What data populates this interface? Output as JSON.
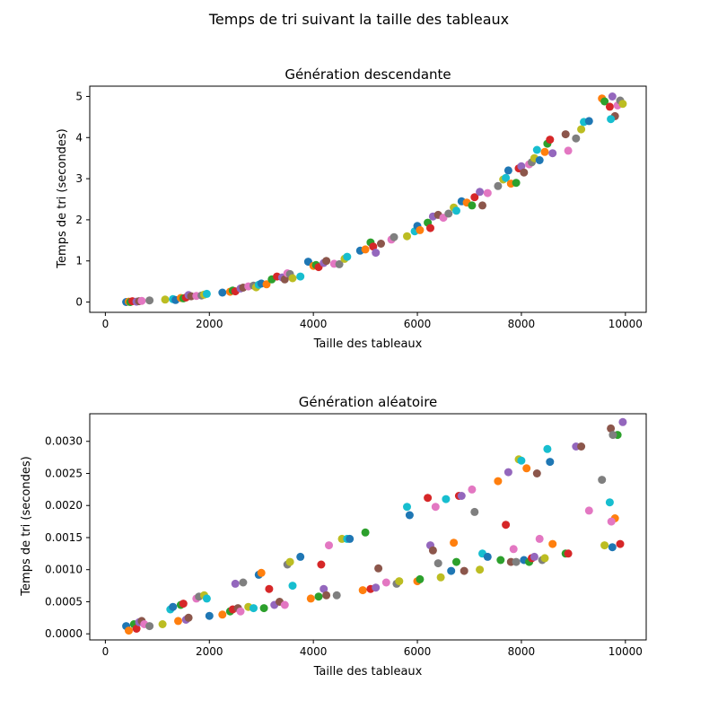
{
  "figure": {
    "suptitle": "Temps de tri suivant la taille des tableaux"
  },
  "colors": [
    "#1f77b4",
    "#ff7f0e",
    "#2ca02c",
    "#d62728",
    "#9467bd",
    "#8c564b",
    "#e377c2",
    "#7f7f7f",
    "#bcbd22",
    "#17becf"
  ],
  "chart_data": [
    {
      "type": "scatter",
      "title": "Génération descendante",
      "xlabel": "Taille des tableaux",
      "ylabel": "Temps de tri (secondes)",
      "xlim": [
        -300,
        10400
      ],
      "ylim": [
        -0.25,
        5.25
      ],
      "xticks": [
        0,
        2000,
        4000,
        6000,
        8000,
        10000
      ],
      "xticklabels": [
        "0",
        "2000",
        "4000",
        "6000",
        "8000",
        "10000"
      ],
      "yticks": [
        0,
        1,
        2,
        3,
        4,
        5
      ],
      "yticklabels": [
        "0",
        "1",
        "2",
        "3",
        "4",
        "5"
      ],
      "grid": false,
      "points": [
        [
          400,
          0.0
        ],
        [
          450,
          0.01
        ],
        [
          480,
          0.0
        ],
        [
          520,
          0.02
        ],
        [
          600,
          0.01
        ],
        [
          650,
          0.02
        ],
        [
          700,
          0.03
        ],
        [
          850,
          0.04
        ],
        [
          1150,
          0.06
        ],
        [
          1300,
          0.07
        ],
        [
          1350,
          0.05
        ],
        [
          1450,
          0.1
        ],
        [
          1500,
          0.09
        ],
        [
          1550,
          0.11
        ],
        [
          1600,
          0.17
        ],
        [
          1650,
          0.14
        ],
        [
          1750,
          0.15
        ],
        [
          1850,
          0.16
        ],
        [
          1900,
          0.18
        ],
        [
          1950,
          0.2
        ],
        [
          2250,
          0.23
        ],
        [
          2400,
          0.25
        ],
        [
          2450,
          0.28
        ],
        [
          2500,
          0.26
        ],
        [
          2600,
          0.33
        ],
        [
          2650,
          0.35
        ],
        [
          2750,
          0.38
        ],
        [
          2850,
          0.4
        ],
        [
          2900,
          0.36
        ],
        [
          2950,
          0.42
        ],
        [
          3000,
          0.45
        ],
        [
          3100,
          0.43
        ],
        [
          3200,
          0.55
        ],
        [
          3300,
          0.62
        ],
        [
          3400,
          0.6
        ],
        [
          3450,
          0.55
        ],
        [
          3500,
          0.7
        ],
        [
          3550,
          0.68
        ],
        [
          3600,
          0.58
        ],
        [
          3750,
          0.62
        ],
        [
          3900,
          0.98
        ],
        [
          4000,
          0.88
        ],
        [
          4050,
          0.9
        ],
        [
          4100,
          0.85
        ],
        [
          4200,
          0.95
        ],
        [
          4250,
          1.0
        ],
        [
          4400,
          0.93
        ],
        [
          4500,
          0.92
        ],
        [
          4600,
          1.05
        ],
        [
          4650,
          1.1
        ],
        [
          4900,
          1.25
        ],
        [
          5000,
          1.28
        ],
        [
          5100,
          1.45
        ],
        [
          5150,
          1.35
        ],
        [
          5200,
          1.2
        ],
        [
          5300,
          1.42
        ],
        [
          5500,
          1.52
        ],
        [
          5550,
          1.58
        ],
        [
          5800,
          1.6
        ],
        [
          5950,
          1.72
        ],
        [
          6000,
          1.85
        ],
        [
          6050,
          1.75
        ],
        [
          6200,
          1.93
        ],
        [
          6250,
          1.8
        ],
        [
          6300,
          2.08
        ],
        [
          6400,
          2.12
        ],
        [
          6500,
          2.05
        ],
        [
          6600,
          2.15
        ],
        [
          6700,
          2.3
        ],
        [
          6750,
          2.22
        ],
        [
          6850,
          2.45
        ],
        [
          6950,
          2.42
        ],
        [
          7050,
          2.35
        ],
        [
          7100,
          2.55
        ],
        [
          7200,
          2.68
        ],
        [
          7250,
          2.35
        ],
        [
          7350,
          2.65
        ],
        [
          7550,
          2.82
        ],
        [
          7650,
          2.98
        ],
        [
          7700,
          3.02
        ],
        [
          7750,
          3.2
        ],
        [
          7800,
          2.88
        ],
        [
          7900,
          2.9
        ],
        [
          7950,
          3.25
        ],
        [
          8000,
          3.3
        ],
        [
          8050,
          3.15
        ],
        [
          8150,
          3.35
        ],
        [
          8200,
          3.4
        ],
        [
          8250,
          3.5
        ],
        [
          8300,
          3.7
        ],
        [
          8350,
          3.45
        ],
        [
          8450,
          3.65
        ],
        [
          8500,
          3.85
        ],
        [
          8550,
          3.95
        ],
        [
          8600,
          3.62
        ],
        [
          8850,
          4.08
        ],
        [
          8900,
          3.68
        ],
        [
          9050,
          3.98
        ],
        [
          9150,
          4.2
        ],
        [
          9200,
          4.38
        ],
        [
          9300,
          4.4
        ],
        [
          9550,
          4.95
        ],
        [
          9600,
          4.88
        ],
        [
          9700,
          4.75
        ],
        [
          9750,
          5.0
        ],
        [
          9800,
          4.52
        ],
        [
          9850,
          4.78
        ],
        [
          9900,
          4.9
        ],
        [
          9950,
          4.82
        ],
        [
          9720,
          4.45
        ]
      ]
    },
    {
      "type": "scatter",
      "title": "Génération aléatoire",
      "xlabel": "Taille des tableaux",
      "ylabel": "Temps de tri (secondes)",
      "xlim": [
        -300,
        10400
      ],
      "ylim": [
        -9.5e-05,
        0.00343
      ],
      "xticks": [
        0,
        2000,
        4000,
        6000,
        8000,
        10000
      ],
      "xticklabels": [
        "0",
        "2000",
        "4000",
        "6000",
        "8000",
        "10000"
      ],
      "yticks": [
        0.0,
        0.0005,
        0.001,
        0.0015,
        0.002,
        0.0025,
        0.003
      ],
      "yticklabels": [
        "0.0000",
        "0.0005",
        "0.0010",
        "0.0015",
        "0.0020",
        "0.0025",
        "0.0030"
      ],
      "grid": false,
      "points": [
        [
          400,
          0.00012
        ],
        [
          450,
          5e-05
        ],
        [
          550,
          0.00015
        ],
        [
          600,
          8e-05
        ],
        [
          650,
          0.00018
        ],
        [
          700,
          0.0002
        ],
        [
          750,
          0.00015
        ],
        [
          850,
          0.00012
        ],
        [
          1100,
          0.00015
        ],
        [
          1250,
          0.00038
        ],
        [
          1300,
          0.00042
        ],
        [
          1400,
          0.0002
        ],
        [
          1450,
          0.00045
        ],
        [
          1500,
          0.00047
        ],
        [
          1550,
          0.00022
        ],
        [
          1600,
          0.00025
        ],
        [
          1750,
          0.00055
        ],
        [
          1800,
          0.00058
        ],
        [
          1900,
          0.0006
        ],
        [
          1950,
          0.00055
        ],
        [
          2000,
          0.00028
        ],
        [
          2250,
          0.0003
        ],
        [
          2400,
          0.00035
        ],
        [
          2450,
          0.00038
        ],
        [
          2500,
          0.00078
        ],
        [
          2550,
          0.0004
        ],
        [
          2600,
          0.00035
        ],
        [
          2650,
          0.0008
        ],
        [
          2750,
          0.00042
        ],
        [
          2850,
          0.0004
        ],
        [
          2950,
          0.00092
        ],
        [
          3000,
          0.00095
        ],
        [
          3050,
          0.0004
        ],
        [
          3150,
          0.0007
        ],
        [
          3250,
          0.00045
        ],
        [
          3350,
          0.0005
        ],
        [
          3450,
          0.00045
        ],
        [
          3500,
          0.00108
        ],
        [
          3550,
          0.00112
        ],
        [
          3600,
          0.00075
        ],
        [
          3750,
          0.0012
        ],
        [
          3950,
          0.00055
        ],
        [
          4100,
          0.00058
        ],
        [
          4150,
          0.00108
        ],
        [
          4200,
          0.0007
        ],
        [
          4250,
          0.0006
        ],
        [
          4300,
          0.00138
        ],
        [
          4450,
          0.0006
        ],
        [
          4550,
          0.00148
        ],
        [
          4650,
          0.00148
        ],
        [
          4700,
          0.00148
        ],
        [
          4950,
          0.00068
        ],
        [
          5000,
          0.00158
        ],
        [
          5100,
          0.0007
        ],
        [
          5200,
          0.00072
        ],
        [
          5250,
          0.00102
        ],
        [
          5400,
          0.0008
        ],
        [
          5600,
          0.00078
        ],
        [
          5650,
          0.00082
        ],
        [
          5800,
          0.00198
        ],
        [
          5850,
          0.00185
        ],
        [
          6000,
          0.00082
        ],
        [
          6050,
          0.00085
        ],
        [
          6200,
          0.00212
        ],
        [
          6250,
          0.00138
        ],
        [
          6300,
          0.0013
        ],
        [
          6350,
          0.00198
        ],
        [
          6400,
          0.0011
        ],
        [
          6450,
          0.00088
        ],
        [
          6550,
          0.0021
        ],
        [
          6650,
          0.00098
        ],
        [
          6700,
          0.00142
        ],
        [
          6750,
          0.00112
        ],
        [
          6800,
          0.00215
        ],
        [
          6850,
          0.00215
        ],
        [
          6900,
          0.00098
        ],
        [
          7050,
          0.00225
        ],
        [
          7100,
          0.0019
        ],
        [
          7200,
          0.001
        ],
        [
          7250,
          0.00125
        ],
        [
          7350,
          0.0012
        ],
        [
          7550,
          0.00238
        ],
        [
          7600,
          0.00115
        ],
        [
          7700,
          0.0017
        ],
        [
          7750,
          0.00252
        ],
        [
          7800,
          0.00112
        ],
        [
          7850,
          0.00132
        ],
        [
          7900,
          0.00112
        ],
        [
          7950,
          0.00272
        ],
        [
          8000,
          0.0027
        ],
        [
          8050,
          0.00115
        ],
        [
          8100,
          0.00258
        ],
        [
          8150,
          0.00112
        ],
        [
          8200,
          0.00118
        ],
        [
          8250,
          0.0012
        ],
        [
          8300,
          0.0025
        ],
        [
          8350,
          0.00148
        ],
        [
          8400,
          0.00115
        ],
        [
          8450,
          0.00118
        ],
        [
          8500,
          0.00288
        ],
        [
          8550,
          0.00268
        ],
        [
          8600,
          0.0014
        ],
        [
          8850,
          0.00125
        ],
        [
          8900,
          0.00125
        ],
        [
          9050,
          0.00292
        ],
        [
          9150,
          0.00292
        ],
        [
          9300,
          0.00192
        ],
        [
          9550,
          0.0024
        ],
        [
          9600,
          0.00138
        ],
        [
          9700,
          0.00205
        ],
        [
          9750,
          0.00135
        ],
        [
          9800,
          0.0018
        ],
        [
          9850,
          0.0031
        ],
        [
          9900,
          0.0014
        ],
        [
          9950,
          0.0033
        ],
        [
          9720,
          0.0032
        ],
        [
          9730,
          0.00175
        ],
        [
          9760,
          0.0031
        ]
      ]
    }
  ]
}
